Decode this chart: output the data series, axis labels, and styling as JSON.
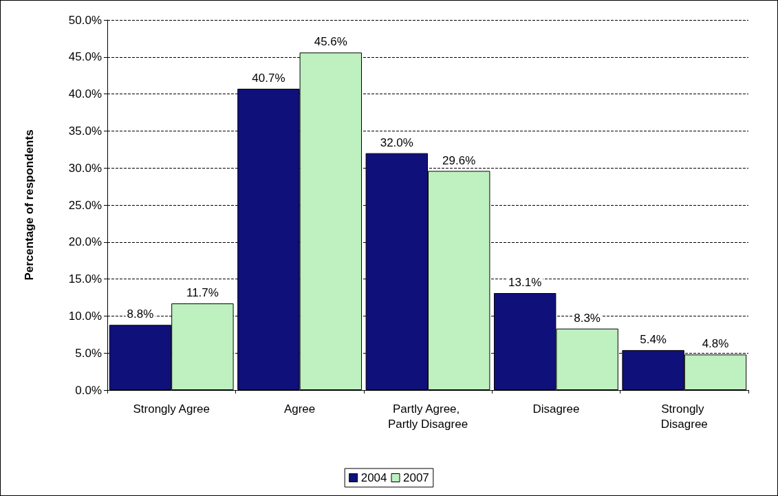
{
  "chart_data": {
    "type": "bar",
    "ylabel": "Percentage of respondents",
    "categories": [
      "Strongly Agree",
      "Agree",
      "Partly Agree, Partly Disagree",
      "Disagree",
      "Strongly Disagree"
    ],
    "series": [
      {
        "name": "2004",
        "color": "#10107a",
        "values": [
          8.8,
          40.7,
          32.0,
          13.1,
          5.4
        ],
        "value_labels": [
          "8.8%",
          "40.7%",
          "32.0%",
          "13.1%",
          "5.4%"
        ]
      },
      {
        "name": "2007",
        "color": "#bff0c0",
        "values": [
          11.7,
          45.6,
          29.6,
          8.3,
          4.8
        ],
        "value_labels": [
          "11.7%",
          "45.6%",
          "29.6%",
          "8.3%",
          "4.8%"
        ]
      }
    ],
    "ylim": [
      0,
      50
    ],
    "yticks": [
      {
        "value": 0,
        "label": "0.0%"
      },
      {
        "value": 5,
        "label": "5.0%"
      },
      {
        "value": 10,
        "label": "10.0%"
      },
      {
        "value": 15,
        "label": "15.0%"
      },
      {
        "value": 20,
        "label": "20.0%"
      },
      {
        "value": 25,
        "label": "25.0%"
      },
      {
        "value": 30,
        "label": "30.0%"
      },
      {
        "value": 35,
        "label": "35.0%"
      },
      {
        "value": 40,
        "label": "40.0%"
      },
      {
        "value": 45,
        "label": "45.0%"
      },
      {
        "value": 50,
        "label": "50.0%"
      }
    ],
    "grid": "y",
    "legend": "bottom"
  }
}
